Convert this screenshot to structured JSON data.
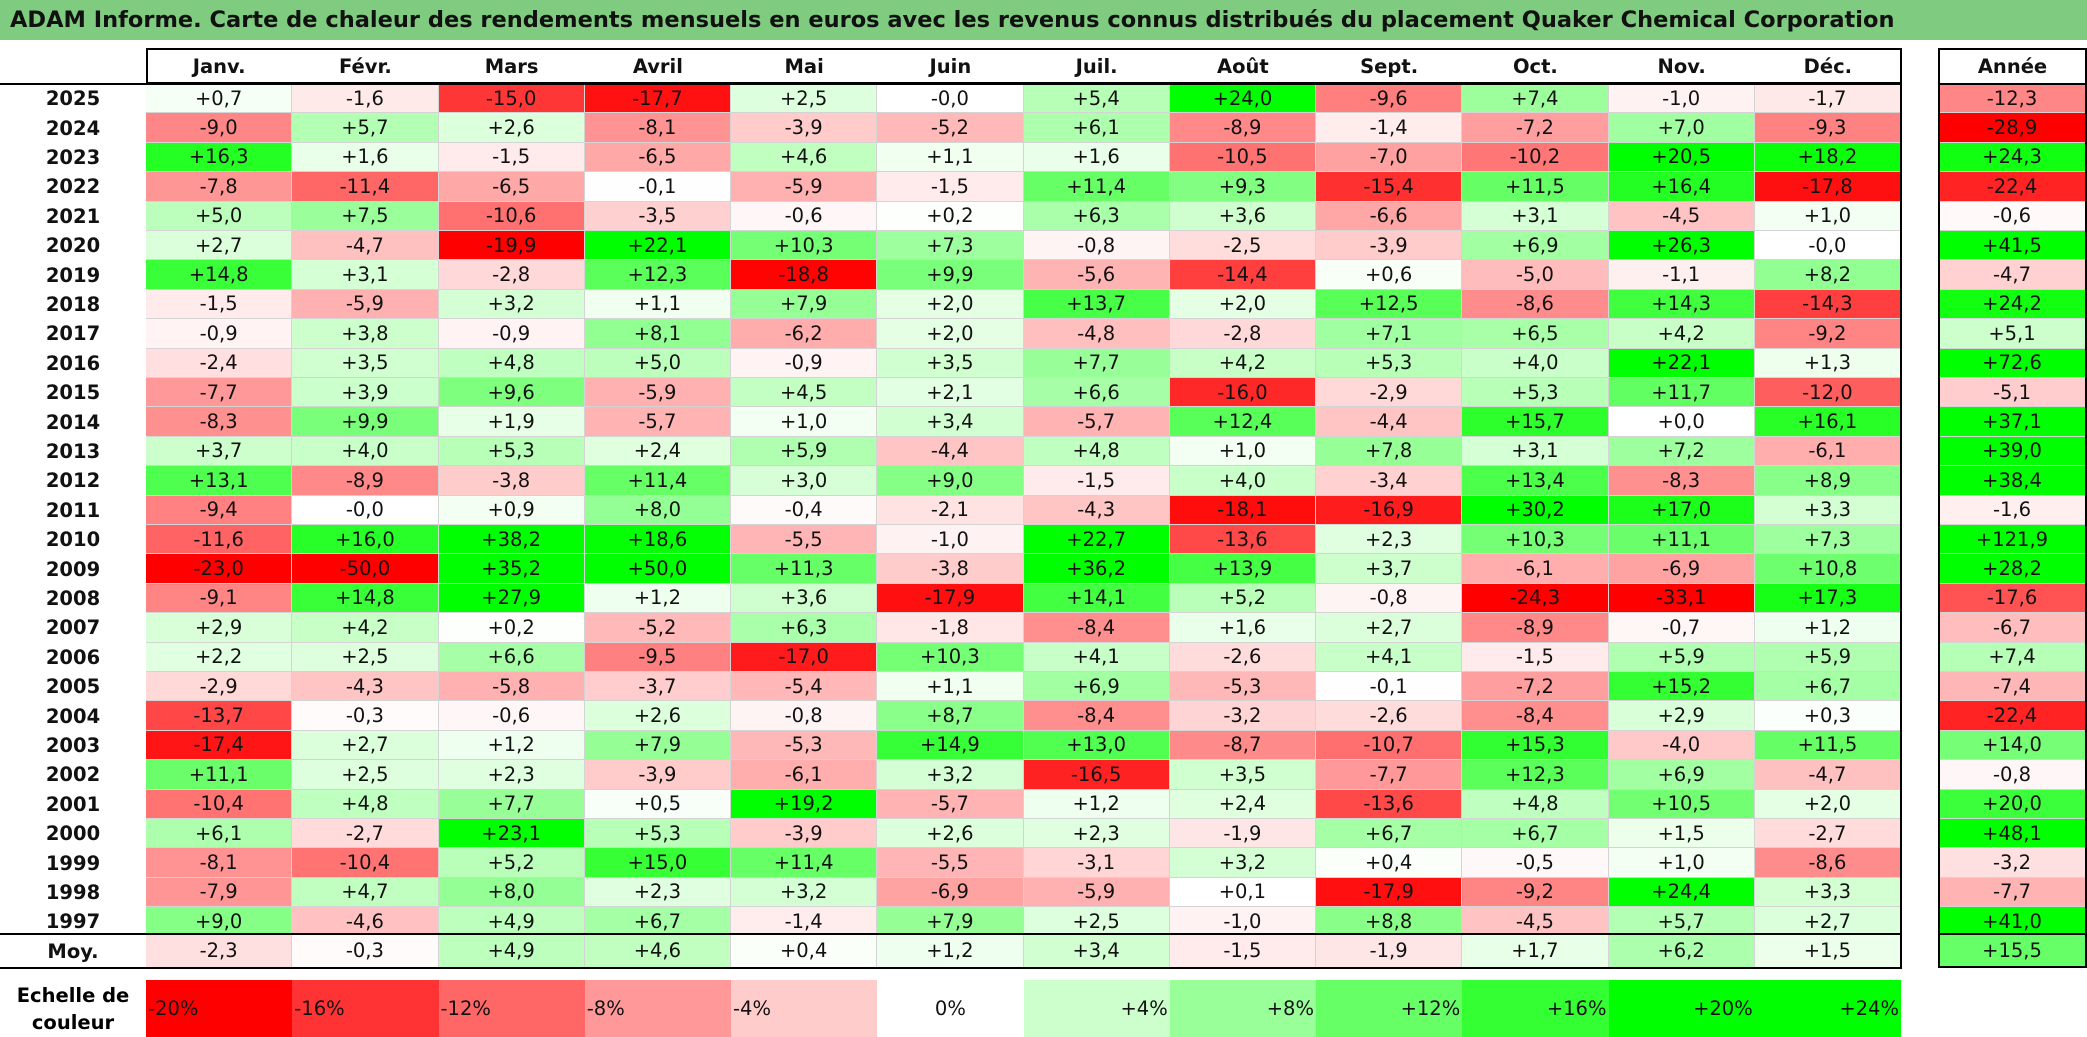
{
  "title": "ADAM Informe. Carte de chaleur des rendements mensuels en euros avec les revenus connus distribués du placement Quaker Chemical Corporation",
  "chart_data": {
    "type": "heatmap",
    "columns": [
      "Janv.",
      "Févr.",
      "Mars",
      "Avril",
      "Mai",
      "Juin",
      "Juil.",
      "Août",
      "Sept.",
      "Oct.",
      "Nov.",
      "Déc."
    ],
    "year_column": "Année",
    "average_label": "Moy.",
    "rows": [
      {
        "year": "2025",
        "values": [
          "+0,7",
          "-1,6",
          "-15,0",
          "-17,7",
          "+2,5",
          "-0,0",
          "+5,4",
          "+24,0",
          "-9,6",
          "+7,4",
          "-1,0",
          "-1,7"
        ],
        "annual": "-12,3"
      },
      {
        "year": "2024",
        "values": [
          "-9,0",
          "+5,7",
          "+2,6",
          "-8,1",
          "-3,9",
          "-5,2",
          "+6,1",
          "-8,9",
          "-1,4",
          "-7,2",
          "+7,0",
          "-9,3"
        ],
        "annual": "-28,9"
      },
      {
        "year": "2023",
        "values": [
          "+16,3",
          "+1,6",
          "-1,5",
          "-6,5",
          "+4,6",
          "+1,1",
          "+1,6",
          "-10,5",
          "-7,0",
          "-10,2",
          "+20,5",
          "+18,2"
        ],
        "annual": "+24,3"
      },
      {
        "year": "2022",
        "values": [
          "-7,8",
          "-11,4",
          "-6,5",
          "-0,1",
          "-5,9",
          "-1,5",
          "+11,4",
          "+9,3",
          "-15,4",
          "+11,5",
          "+16,4",
          "-17,8"
        ],
        "annual": "-22,4"
      },
      {
        "year": "2021",
        "values": [
          "+5,0",
          "+7,5",
          "-10,6",
          "-3,5",
          "-0,6",
          "+0,2",
          "+6,3",
          "+3,6",
          "-6,6",
          "+3,1",
          "-4,5",
          "+1,0"
        ],
        "annual": "-0,6"
      },
      {
        "year": "2020",
        "values": [
          "+2,7",
          "-4,7",
          "-19,9",
          "+22,1",
          "+10,3",
          "+7,3",
          "-0,8",
          "-2,5",
          "-3,9",
          "+6,9",
          "+26,3",
          "-0,0"
        ],
        "annual": "+41,5"
      },
      {
        "year": "2019",
        "values": [
          "+14,8",
          "+3,1",
          "-2,8",
          "+12,3",
          "-18,8",
          "+9,9",
          "-5,6",
          "-14,4",
          "+0,6",
          "-5,0",
          "-1,1",
          "+8,2"
        ],
        "annual": "-4,7"
      },
      {
        "year": "2018",
        "values": [
          "-1,5",
          "-5,9",
          "+3,2",
          "+1,1",
          "+7,9",
          "+2,0",
          "+13,7",
          "+2,0",
          "+12,5",
          "-8,6",
          "+14,3",
          "-14,3"
        ],
        "annual": "+24,2"
      },
      {
        "year": "2017",
        "values": [
          "-0,9",
          "+3,8",
          "-0,9",
          "+8,1",
          "-6,2",
          "+2,0",
          "-4,8",
          "-2,8",
          "+7,1",
          "+6,5",
          "+4,2",
          "-9,2"
        ],
        "annual": "+5,1"
      },
      {
        "year": "2016",
        "values": [
          "-2,4",
          "+3,5",
          "+4,8",
          "+5,0",
          "-0,9",
          "+3,5",
          "+7,7",
          "+4,2",
          "+5,3",
          "+4,0",
          "+22,1",
          "+1,3"
        ],
        "annual": "+72,6"
      },
      {
        "year": "2015",
        "values": [
          "-7,7",
          "+3,9",
          "+9,6",
          "-5,9",
          "+4,5",
          "+2,1",
          "+6,6",
          "-16,0",
          "-2,9",
          "+5,3",
          "+11,7",
          "-12,0"
        ],
        "annual": "-5,1"
      },
      {
        "year": "2014",
        "values": [
          "-8,3",
          "+9,9",
          "+1,9",
          "-5,7",
          "+1,0",
          "+3,4",
          "-5,7",
          "+12,4",
          "-4,4",
          "+15,7",
          "+0,0",
          "+16,1"
        ],
        "annual": "+37,1"
      },
      {
        "year": "2013",
        "values": [
          "+3,7",
          "+4,0",
          "+5,3",
          "+2,4",
          "+5,9",
          "-4,4",
          "+4,8",
          "+1,0",
          "+7,8",
          "+3,1",
          "+7,2",
          "-6,1"
        ],
        "annual": "+39,0"
      },
      {
        "year": "2012",
        "values": [
          "+13,1",
          "-8,9",
          "-3,8",
          "+11,4",
          "+3,0",
          "+9,0",
          "-1,5",
          "+4,0",
          "-3,4",
          "+13,4",
          "-8,3",
          "+8,9"
        ],
        "annual": "+38,4"
      },
      {
        "year": "2011",
        "values": [
          "-9,4",
          "-0,0",
          "+0,9",
          "+8,0",
          "-0,4",
          "-2,1",
          "-4,3",
          "-18,1",
          "-16,9",
          "+30,2",
          "+17,0",
          "+3,3"
        ],
        "annual": "-1,6"
      },
      {
        "year": "2010",
        "values": [
          "-11,6",
          "+16,0",
          "+38,2",
          "+18,6",
          "-5,5",
          "-1,0",
          "+22,7",
          "-13,6",
          "+2,3",
          "+10,3",
          "+11,1",
          "+7,3"
        ],
        "annual": "+121,9"
      },
      {
        "year": "2009",
        "values": [
          "-23,0",
          "-50,0",
          "+35,2",
          "+50,0",
          "+11,3",
          "-3,8",
          "+36,2",
          "+13,9",
          "+3,7",
          "-6,1",
          "-6,9",
          "+10,8"
        ],
        "annual": "+28,2"
      },
      {
        "year": "2008",
        "values": [
          "-9,1",
          "+14,8",
          "+27,9",
          "+1,2",
          "+3,6",
          "-17,9",
          "+14,1",
          "+5,2",
          "-0,8",
          "-24,3",
          "-33,1",
          "+17,3"
        ],
        "annual": "-17,6"
      },
      {
        "year": "2007",
        "values": [
          "+2,9",
          "+4,2",
          "+0,2",
          "-5,2",
          "+6,3",
          "-1,8",
          "-8,4",
          "+1,6",
          "+2,7",
          "-8,9",
          "-0,7",
          "+1,2"
        ],
        "annual": "-6,7"
      },
      {
        "year": "2006",
        "values": [
          "+2,2",
          "+2,5",
          "+6,6",
          "-9,5",
          "-17,0",
          "+10,3",
          "+4,1",
          "-2,6",
          "+4,1",
          "-1,5",
          "+5,9",
          "+5,9"
        ],
        "annual": "+7,4"
      },
      {
        "year": "2005",
        "values": [
          "-2,9",
          "-4,3",
          "-5,8",
          "-3,7",
          "-5,4",
          "+1,1",
          "+6,9",
          "-5,3",
          "-0,1",
          "-7,2",
          "+15,2",
          "+6,7"
        ],
        "annual": "-7,4"
      },
      {
        "year": "2004",
        "values": [
          "-13,7",
          "-0,3",
          "-0,6",
          "+2,6",
          "-0,8",
          "+8,7",
          "-8,4",
          "-3,2",
          "-2,6",
          "-8,4",
          "+2,9",
          "+0,3"
        ],
        "annual": "-22,4"
      },
      {
        "year": "2003",
        "values": [
          "-17,4",
          "+2,7",
          "+1,2",
          "+7,9",
          "-5,3",
          "+14,9",
          "+13,0",
          "-8,7",
          "-10,7",
          "+15,3",
          "-4,0",
          "+11,5"
        ],
        "annual": "+14,0"
      },
      {
        "year": "2002",
        "values": [
          "+11,1",
          "+2,5",
          "+2,3",
          "-3,9",
          "-6,1",
          "+3,2",
          "-16,5",
          "+3,5",
          "-7,7",
          "+12,3",
          "+6,9",
          "-4,7"
        ],
        "annual": "-0,8"
      },
      {
        "year": "2001",
        "values": [
          "-10,4",
          "+4,8",
          "+7,7",
          "+0,5",
          "+19,2",
          "-5,7",
          "+1,2",
          "+2,4",
          "-13,6",
          "+4,8",
          "+10,5",
          "+2,0"
        ],
        "annual": "+20,0"
      },
      {
        "year": "2000",
        "values": [
          "+6,1",
          "-2,7",
          "+23,1",
          "+5,3",
          "-3,9",
          "+2,6",
          "+2,3",
          "-1,9",
          "+6,7",
          "+6,7",
          "+1,5",
          "-2,7"
        ],
        "annual": "+48,1"
      },
      {
        "year": "1999",
        "values": [
          "-8,1",
          "-10,4",
          "+5,2",
          "+15,0",
          "+11,4",
          "-5,5",
          "-3,1",
          "+3,2",
          "+0,4",
          "-0,5",
          "+1,0",
          "-8,6"
        ],
        "annual": "-3,2"
      },
      {
        "year": "1998",
        "values": [
          "-7,9",
          "+4,7",
          "+8,0",
          "+2,3",
          "+3,2",
          "-6,9",
          "-5,9",
          "+0,1",
          "-17,9",
          "-9,2",
          "+24,4",
          "+3,3"
        ],
        "annual": "-7,7"
      },
      {
        "year": "1997",
        "values": [
          "+9,0",
          "-4,6",
          "+4,9",
          "+6,7",
          "-1,4",
          "+7,9",
          "+2,5",
          "-1,0",
          "+8,8",
          "-4,5",
          "+5,7",
          "+2,7"
        ],
        "annual": "+41,0"
      }
    ],
    "average": {
      "values": [
        "-2,3",
        "-0,3",
        "+4,9",
        "+4,6",
        "+0,4",
        "+1,2",
        "+3,4",
        "-1,5",
        "-1,9",
        "+1,7",
        "+6,2",
        "+1,5"
      ],
      "annual": "+15,5"
    },
    "color_scale": {
      "label": "Echelle de couleur",
      "stops": [
        "-20%",
        "-16%",
        "-12%",
        "-8%",
        "-4%",
        "0%",
        "+4%",
        "+8%",
        "+12%",
        "+16%",
        "+20%",
        "+24%"
      ],
      "negative_color": "#ff0000",
      "neutral_color": "#ffffff",
      "positive_color": "#00ff00"
    }
  }
}
